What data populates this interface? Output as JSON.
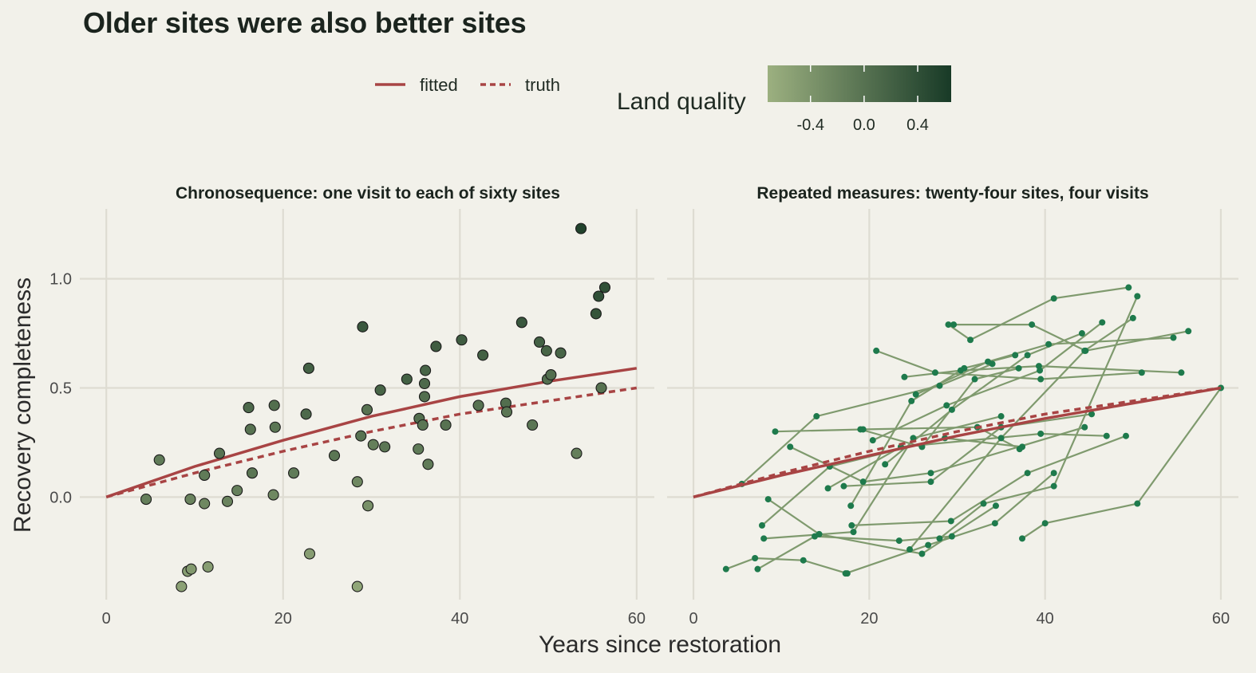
{
  "title": "Older sites were also better sites",
  "legend": {
    "fitted": "fitted",
    "truth": "truth",
    "colorbar_title": "Land quality",
    "colorbar_ticks": [
      "-0.4",
      "0.0",
      "0.4"
    ],
    "colorbar_values": [
      -0.4,
      0.0,
      0.4
    ],
    "colorbar_range": [
      -0.72,
      0.65
    ],
    "colorbar_low": "#9cb080",
    "colorbar_high": "#183a27"
  },
  "axes": {
    "xlabel": "Years since restoration",
    "ylabel": "Recovery completeness",
    "xlim": [
      -3,
      62
    ],
    "ylim": [
      -0.47,
      1.32
    ],
    "xticks": [
      0,
      20,
      40,
      60
    ],
    "yticks": [
      0.0,
      0.5,
      1.0
    ],
    "xtick_labels": [
      "0",
      "20",
      "40",
      "60"
    ],
    "ytick_labels": [
      "0.0",
      "0.5",
      "1.0"
    ],
    "grid": true
  },
  "colors": {
    "background": "#f2f1ea",
    "fitted": "#a84444",
    "truth": "#a84444",
    "repeated_line": "#7f9a6e",
    "repeated_point": "#1e7a4c"
  },
  "chart_data": [
    {
      "type": "scatter",
      "title": "Chronosequence: one visit to each of sixty sites",
      "points": [
        {
          "x": 4.5,
          "y": -0.01,
          "q": -0.15
        },
        {
          "x": 6.0,
          "y": 0.17,
          "q": -0.1
        },
        {
          "x": 8.5,
          "y": -0.41,
          "q": -0.55
        },
        {
          "x": 9.2,
          "y": -0.34,
          "q": -0.5
        },
        {
          "x": 9.6,
          "y": -0.33,
          "q": -0.45
        },
        {
          "x": 9.5,
          "y": -0.01,
          "q": -0.2
        },
        {
          "x": 11.1,
          "y": 0.1,
          "q": -0.1
        },
        {
          "x": 11.1,
          "y": -0.03,
          "q": -0.25
        },
        {
          "x": 11.5,
          "y": -0.32,
          "q": -0.5
        },
        {
          "x": 12.8,
          "y": 0.2,
          "q": 0.0
        },
        {
          "x": 13.7,
          "y": -0.02,
          "q": -0.2
        },
        {
          "x": 14.8,
          "y": 0.03,
          "q": -0.15
        },
        {
          "x": 16.1,
          "y": 0.41,
          "q": 0.1
        },
        {
          "x": 16.3,
          "y": 0.31,
          "q": 0.0
        },
        {
          "x": 16.5,
          "y": 0.11,
          "q": -0.05
        },
        {
          "x": 19.0,
          "y": 0.42,
          "q": 0.05
        },
        {
          "x": 19.1,
          "y": 0.32,
          "q": -0.05
        },
        {
          "x": 18.9,
          "y": 0.01,
          "q": -0.25
        },
        {
          "x": 21.2,
          "y": 0.11,
          "q": -0.1
        },
        {
          "x": 22.6,
          "y": 0.38,
          "q": 0.1
        },
        {
          "x": 22.9,
          "y": 0.59,
          "q": 0.2
        },
        {
          "x": 23.0,
          "y": -0.26,
          "q": -0.5
        },
        {
          "x": 25.8,
          "y": 0.19,
          "q": -0.05
        },
        {
          "x": 28.4,
          "y": 0.07,
          "q": -0.25
        },
        {
          "x": 28.4,
          "y": -0.41,
          "q": -0.6
        },
        {
          "x": 28.8,
          "y": 0.28,
          "q": 0.0
        },
        {
          "x": 29.0,
          "y": 0.78,
          "q": 0.3
        },
        {
          "x": 29.5,
          "y": 0.4,
          "q": 0.0
        },
        {
          "x": 29.6,
          "y": -0.04,
          "q": -0.35
        },
        {
          "x": 30.2,
          "y": 0.24,
          "q": -0.15
        },
        {
          "x": 31.0,
          "y": 0.49,
          "q": 0.15
        },
        {
          "x": 31.5,
          "y": 0.23,
          "q": -0.05
        },
        {
          "x": 34.0,
          "y": 0.54,
          "q": 0.2
        },
        {
          "x": 35.3,
          "y": 0.22,
          "q": -0.1
        },
        {
          "x": 35.4,
          "y": 0.36,
          "q": 0.05
        },
        {
          "x": 35.8,
          "y": 0.33,
          "q": -0.05
        },
        {
          "x": 36.0,
          "y": 0.46,
          "q": 0.05
        },
        {
          "x": 36.0,
          "y": 0.52,
          "q": 0.1
        },
        {
          "x": 36.1,
          "y": 0.58,
          "q": 0.15
        },
        {
          "x": 36.4,
          "y": 0.15,
          "q": -0.1
        },
        {
          "x": 37.3,
          "y": 0.69,
          "q": 0.25
        },
        {
          "x": 38.4,
          "y": 0.33,
          "q": 0.0
        },
        {
          "x": 40.2,
          "y": 0.72,
          "q": 0.25
        },
        {
          "x": 42.1,
          "y": 0.42,
          "q": 0.0
        },
        {
          "x": 42.6,
          "y": 0.65,
          "q": 0.2
        },
        {
          "x": 45.2,
          "y": 0.43,
          "q": 0.05
        },
        {
          "x": 45.3,
          "y": 0.39,
          "q": -0.05
        },
        {
          "x": 47.0,
          "y": 0.8,
          "q": 0.3
        },
        {
          "x": 48.2,
          "y": 0.33,
          "q": -0.05
        },
        {
          "x": 49.0,
          "y": 0.71,
          "q": 0.2
        },
        {
          "x": 49.8,
          "y": 0.67,
          "q": 0.15
        },
        {
          "x": 49.9,
          "y": 0.54,
          "q": 0.05
        },
        {
          "x": 50.3,
          "y": 0.56,
          "q": 0.05
        },
        {
          "x": 51.4,
          "y": 0.66,
          "q": 0.15
        },
        {
          "x": 53.2,
          "y": 0.2,
          "q": -0.15
        },
        {
          "x": 53.7,
          "y": 1.23,
          "q": 0.55
        },
        {
          "x": 55.4,
          "y": 0.84,
          "q": 0.35
        },
        {
          "x": 55.7,
          "y": 0.92,
          "q": 0.4
        },
        {
          "x": 56.0,
          "y": 0.5,
          "q": 0.0
        },
        {
          "x": 56.4,
          "y": 0.96,
          "q": 0.4
        }
      ],
      "fitted": {
        "x": [
          0,
          10,
          20,
          30,
          40,
          50,
          60
        ],
        "y": [
          0.0,
          0.14,
          0.26,
          0.37,
          0.46,
          0.53,
          0.59
        ]
      },
      "truth": {
        "x": [
          0,
          10,
          20,
          30,
          40,
          50,
          60
        ],
        "y": [
          0.0,
          0.11,
          0.21,
          0.3,
          0.38,
          0.44,
          0.5
        ]
      }
    },
    {
      "type": "line",
      "title": "Repeated measures: twenty-four sites, four visits",
      "sites": [
        {
          "x": [
            3.7,
            7.0,
            12.5,
            17.5
          ],
          "y": [
            -0.33,
            -0.28,
            -0.29,
            -0.35
          ]
        },
        {
          "x": [
            5.5,
            14.0,
            28.0,
            34.0
          ],
          "y": [
            0.06,
            0.37,
            0.51,
            0.61
          ]
        },
        {
          "x": [
            7.3,
            13.8,
            23.4,
            29.4
          ],
          "y": [
            -0.33,
            -0.18,
            -0.2,
            -0.18
          ]
        },
        {
          "x": [
            7.8,
            15.5,
            28.6,
            37.4
          ],
          "y": [
            -0.13,
            0.14,
            0.27,
            0.23
          ]
        },
        {
          "x": [
            8.0,
            18.2,
            25.0,
            35.0
          ],
          "y": [
            -0.19,
            -0.16,
            0.27,
            0.37
          ]
        },
        {
          "x": [
            8.5,
            14.3,
            26.0,
            34.4
          ],
          "y": [
            -0.01,
            -0.17,
            -0.26,
            -0.04
          ]
        },
        {
          "x": [
            9.3,
            19.3,
            32.3,
            37.1
          ],
          "y": [
            0.3,
            0.31,
            0.32,
            0.22
          ]
        },
        {
          "x": [
            11.0,
            19.3,
            27.0,
            44.5
          ],
          "y": [
            0.23,
            0.07,
            0.11,
            0.32
          ]
        },
        {
          "x": [
            15.3,
            23.6,
            39.5,
            47.0
          ],
          "y": [
            0.04,
            0.23,
            0.29,
            0.28
          ]
        },
        {
          "x": [
            17.1,
            27.0,
            35.0,
            45.3
          ],
          "y": [
            0.05,
            0.07,
            0.32,
            0.38
          ]
        },
        {
          "x": [
            17.3,
            26.7,
            34.3,
            41.0
          ],
          "y": [
            -0.35,
            -0.22,
            -0.12,
            0.11
          ]
        },
        {
          "x": [
            17.9,
            24.8,
            30.8,
            36.6
          ],
          "y": [
            -0.04,
            0.44,
            0.59,
            0.65
          ]
        },
        {
          "x": [
            18.0,
            29.3,
            38.0,
            49.2
          ],
          "y": [
            -0.13,
            -0.11,
            0.11,
            0.28
          ]
        },
        {
          "x": [
            19.0,
            26.0,
            32.0,
            37.0
          ],
          "y": [
            0.31,
            0.23,
            0.54,
            0.59
          ]
        },
        {
          "x": [
            20.4,
            28.8,
            39.4,
            46.5
          ],
          "y": [
            0.26,
            0.42,
            0.58,
            0.8
          ]
        },
        {
          "x": [
            20.8,
            27.5,
            39.5,
            51.0
          ],
          "y": [
            0.67,
            0.57,
            0.54,
            0.57
          ]
        },
        {
          "x": [
            21.8,
            29.4,
            38.0,
            44.2
          ],
          "y": [
            0.15,
            0.4,
            0.65,
            0.75
          ]
        },
        {
          "x": [
            24.0,
            30.4,
            39.3,
            55.5
          ],
          "y": [
            0.55,
            0.58,
            0.6,
            0.57
          ]
        },
        {
          "x": [
            24.6,
            35.0,
            44.5,
            50.0
          ],
          "y": [
            -0.24,
            0.27,
            0.67,
            0.82
          ]
        },
        {
          "x": [
            25.3,
            33.5,
            40.4,
            54.6
          ],
          "y": [
            0.47,
            0.62,
            0.7,
            0.73
          ]
        },
        {
          "x": [
            28.0,
            33.0,
            41.0,
            50.5
          ],
          "y": [
            -0.19,
            -0.03,
            0.05,
            0.92
          ]
        },
        {
          "x": [
            29.0,
            31.5,
            41.0,
            49.5
          ],
          "y": [
            0.79,
            0.72,
            0.91,
            0.96
          ]
        },
        {
          "x": [
            29.6,
            38.5,
            44.6,
            56.3
          ],
          "y": [
            0.79,
            0.79,
            0.67,
            0.76
          ]
        },
        {
          "x": [
            37.4,
            40.0,
            50.5,
            60.0
          ],
          "y": [
            -0.19,
            -0.12,
            -0.03,
            0.5
          ]
        }
      ],
      "fitted": {
        "x": [
          0,
          10,
          20,
          30,
          40,
          50,
          60
        ],
        "y": [
          0.0,
          0.1,
          0.19,
          0.28,
          0.36,
          0.43,
          0.5
        ]
      },
      "truth": {
        "x": [
          0,
          10,
          20,
          30,
          40,
          50,
          60
        ],
        "y": [
          0.0,
          0.11,
          0.21,
          0.3,
          0.38,
          0.44,
          0.5
        ]
      }
    }
  ]
}
